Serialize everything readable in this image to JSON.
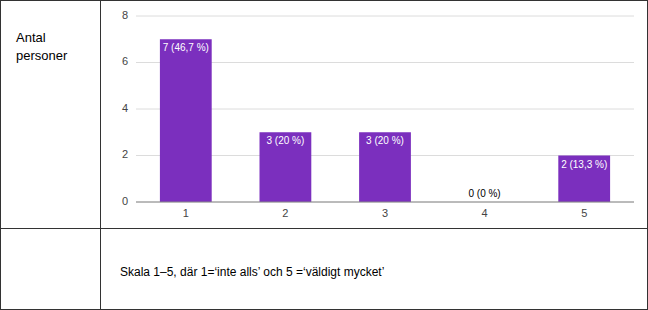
{
  "chart_data": {
    "type": "bar",
    "ylabel": "Antal personer",
    "annotations": [
      "Skala 1–5, där 1=‘inte alls’ och 5 =‘väldigt mycket’"
    ],
    "categories": [
      1,
      2,
      3,
      4,
      5
    ],
    "values": [
      7,
      3,
      3,
      0,
      2
    ],
    "value_labels": [
      "7 (46,7 %)",
      "3 (20 %)",
      "3 (20 %)",
      "0 (0 %)",
      "2 (13,3 %)"
    ],
    "data_labels": true,
    "color": "#7B2FBE",
    "ylim": [
      0,
      8
    ],
    "yticks": [
      0,
      2,
      4,
      6,
      8
    ],
    "grid": true
  }
}
